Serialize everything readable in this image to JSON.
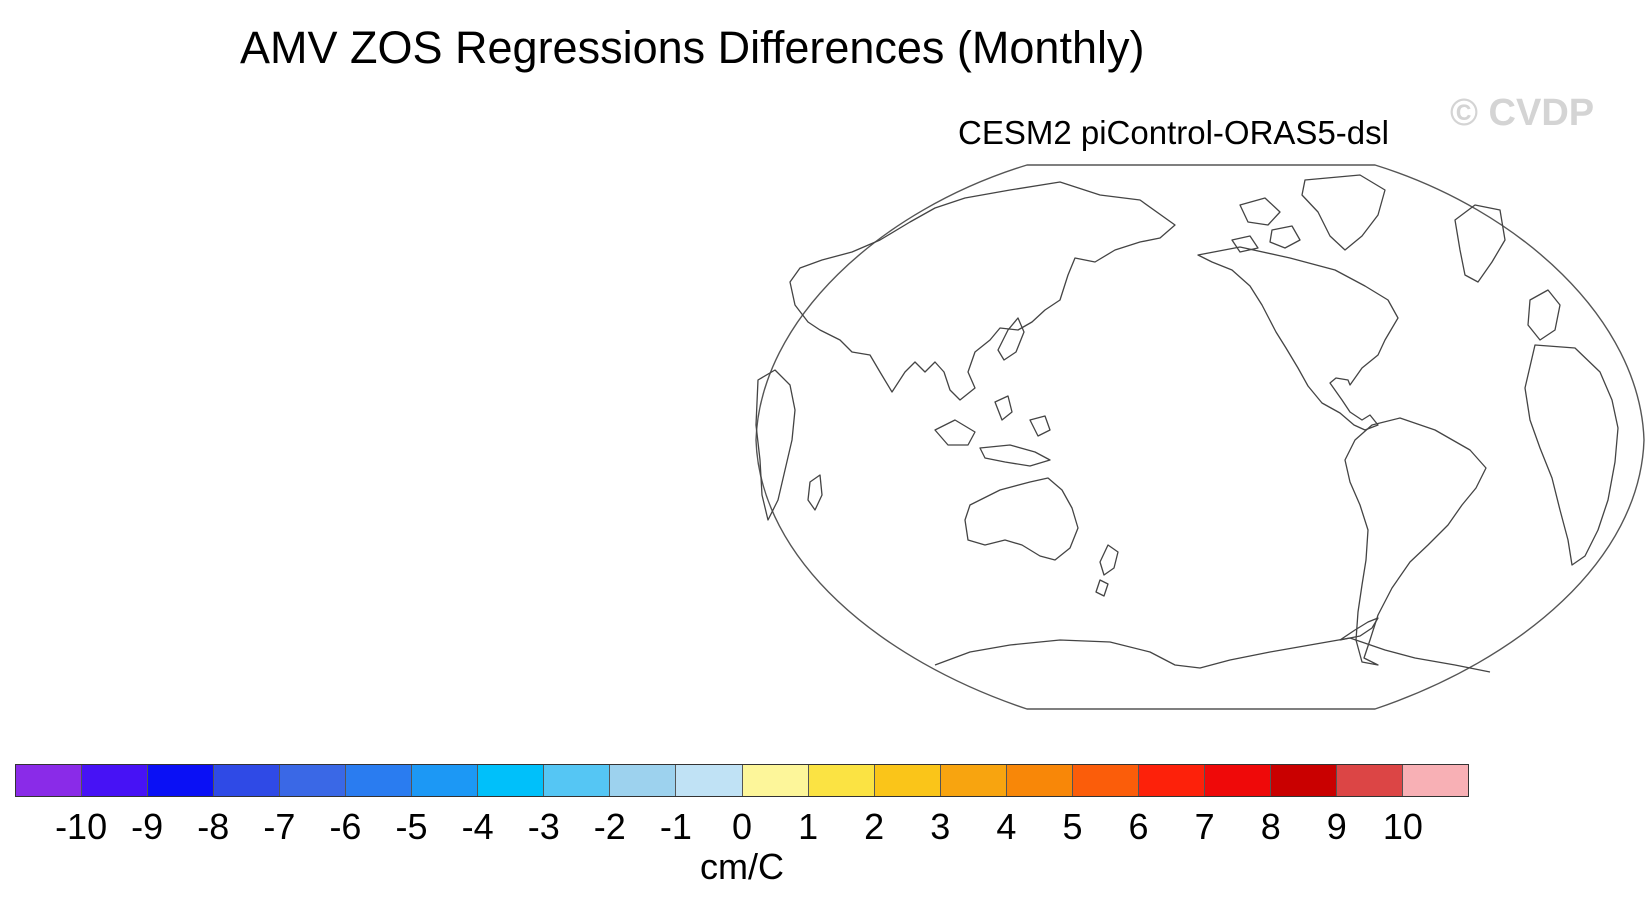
{
  "title": "AMV ZOS Regressions Differences (Monthly)",
  "panel": {
    "title": "CESM2 piControl-ORAS5-dsl",
    "projection": "robinson-pacific-centered"
  },
  "watermark": "© CVDP",
  "colorbar": {
    "units": "cm/C",
    "ticks": [
      "-10",
      "-9",
      "-8",
      "-7",
      "-6",
      "-5",
      "-4",
      "-3",
      "-2",
      "-1",
      "0",
      "1",
      "2",
      "3",
      "4",
      "5",
      "6",
      "7",
      "8",
      "9",
      "10"
    ],
    "colors": [
      "#8a2be8",
      "#4712f5",
      "#0a10f5",
      "#2f4ae6",
      "#3a68e6",
      "#2a7cf0",
      "#1c98f5",
      "#00c0fa",
      "#55c6f4",
      "#9dd2ee",
      "#c0e2f5",
      "#fdf69a",
      "#fbe343",
      "#fac519",
      "#f8a40f",
      "#f88708",
      "#fb5d0a",
      "#fd210a",
      "#ef0909",
      "#c90000",
      "#dc4545",
      "#f8b0b5"
    ]
  },
  "map": {
    "outline_color": "#555555",
    "coast_color": "#444444"
  }
}
